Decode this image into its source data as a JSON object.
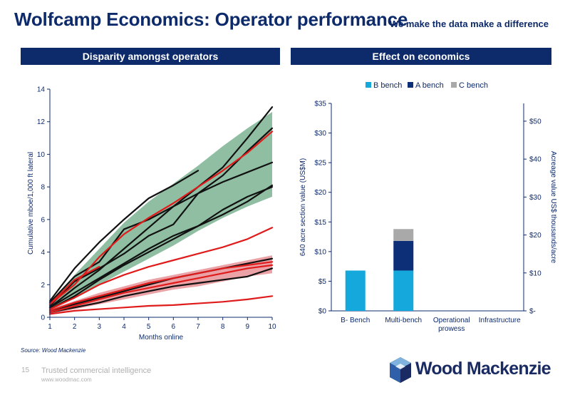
{
  "header": {
    "title": "Wolfcamp Economics: Operator performance",
    "tagline": "We make the data make a difference"
  },
  "panels": {
    "left_title": "Disparity amongst operators",
    "right_title": "Effect on economics"
  },
  "source": "Source: Wood Mackenzie",
  "footer": {
    "page_number": "15",
    "tagline": "Trusted commercial intelligence",
    "url": "www.woodmac.com",
    "logo_text": "WoodMackenzie"
  },
  "colors": {
    "navy": "#0d2a6b",
    "green_band": "#5fa27a",
    "red_band": "#e37a80",
    "black_line": "#111111",
    "red_line": "#e01b1b",
    "b_bench": "#14a8dd",
    "a_bench": "#0d2f78",
    "c_bench": "#a9a9a9"
  },
  "chart_data": [
    {
      "type": "line",
      "xlabel": "Months online",
      "ylabel": "Cumulative mboe/1,000 ft lateral",
      "xlim": [
        1,
        10
      ],
      "ylim": [
        0,
        14
      ],
      "x_ticks": [
        "1",
        "2",
        "3",
        "4",
        "5",
        "6",
        "7",
        "8",
        "9",
        "10"
      ],
      "y_ticks": [
        "0",
        "2",
        "4",
        "6",
        "8",
        "10",
        "12",
        "14"
      ],
      "grid": false,
      "bands": [
        {
          "color": "green",
          "x": [
            1,
            2,
            3,
            4,
            5,
            6,
            7,
            8,
            9,
            10
          ],
          "upper": [
            0.9,
            2.6,
            4.2,
            5.8,
            7.1,
            8.2,
            9.3,
            10.5,
            11.6,
            12.6
          ],
          "lower": [
            0.4,
            1.2,
            2.0,
            2.8,
            3.6,
            4.4,
            5.3,
            6.1,
            6.8,
            7.4
          ]
        },
        {
          "color": "red",
          "x": [
            1,
            2,
            3,
            4,
            5,
            6,
            7,
            8,
            9,
            10
          ],
          "upper": [
            0.5,
            1.0,
            1.5,
            1.9,
            2.3,
            2.6,
            2.9,
            3.2,
            3.5,
            3.8
          ],
          "lower": [
            0.2,
            0.5,
            0.8,
            1.1,
            1.4,
            1.7,
            1.9,
            2.2,
            2.5,
            2.7
          ]
        }
      ],
      "series": [
        {
          "color": "black",
          "x": [
            1,
            2,
            3,
            4,
            5,
            6,
            7
          ],
          "y": [
            1.0,
            3.0,
            4.6,
            6.0,
            7.3,
            8.1,
            9.0
          ]
        },
        {
          "color": "black",
          "x": [
            1,
            2,
            3,
            4,
            5,
            6,
            7,
            8,
            9,
            10
          ],
          "y": [
            0.6,
            1.8,
            2.9,
            4.2,
            5.5,
            6.8,
            8.0,
            9.2,
            11.0,
            12.9
          ]
        },
        {
          "color": "black",
          "x": [
            1,
            2,
            3,
            4,
            5,
            6,
            7,
            8,
            9,
            10
          ],
          "y": [
            0.9,
            2.5,
            3.4,
            5.4,
            6.0,
            6.8,
            7.6,
            8.7,
            10.2,
            11.6
          ]
        },
        {
          "color": "black",
          "x": [
            1,
            2,
            3,
            4,
            5,
            6,
            7,
            8,
            9,
            10
          ],
          "y": [
            0.7,
            2.2,
            3.0,
            3.9,
            5.0,
            5.7,
            7.6,
            8.3,
            8.9,
            9.5
          ]
        },
        {
          "color": "black",
          "x": [
            1,
            2,
            3,
            4,
            5,
            6,
            7,
            8,
            9,
            10
          ],
          "y": [
            0.5,
            1.3,
            2.3,
            3.2,
            4.0,
            4.8,
            5.6,
            6.3,
            7.1,
            8.1
          ]
        },
        {
          "color": "black",
          "x": [
            1,
            2,
            3,
            4,
            5,
            6,
            7,
            8,
            9,
            10
          ],
          "y": [
            0.6,
            1.5,
            2.4,
            3.3,
            4.2,
            5.0,
            5.6,
            6.6,
            7.4,
            8.0
          ]
        },
        {
          "color": "black",
          "x": [
            1,
            2,
            3,
            4,
            5,
            6,
            7,
            8,
            9,
            10
          ],
          "y": [
            0.4,
            0.8,
            1.2,
            1.6,
            2.0,
            2.4,
            2.7,
            3.0,
            3.3,
            3.6
          ]
        },
        {
          "color": "black",
          "x": [
            1,
            2,
            3,
            4,
            5,
            6,
            7,
            8,
            9,
            10
          ],
          "y": [
            0.3,
            0.6,
            0.9,
            1.3,
            1.6,
            1.9,
            2.1,
            2.3,
            2.5,
            3.0
          ]
        },
        {
          "color": "red",
          "x": [
            1,
            2,
            3,
            4,
            5,
            6,
            7,
            8,
            9,
            10
          ],
          "y": [
            0.8,
            2.0,
            3.7,
            5.1,
            6.1,
            7.0,
            8.0,
            9.0,
            10.1,
            11.4
          ]
        },
        {
          "color": "red",
          "x": [
            1,
            2,
            3
          ],
          "y": [
            0.8,
            2.3,
            3.1
          ]
        },
        {
          "color": "red",
          "x": [
            1,
            2,
            3,
            4,
            5,
            6,
            7,
            8,
            9,
            10
          ],
          "y": [
            0.5,
            1.2,
            2.0,
            2.6,
            3.1,
            3.5,
            3.9,
            4.3,
            4.8,
            5.5
          ]
        },
        {
          "color": "red",
          "x": [
            1,
            2,
            3,
            4,
            5,
            6,
            7,
            8,
            9,
            10
          ],
          "y": [
            0.4,
            0.9,
            1.3,
            1.7,
            2.1,
            2.4,
            2.7,
            3.0,
            3.2,
            3.4
          ]
        },
        {
          "color": "red",
          "x": [
            1,
            2,
            3,
            4,
            5,
            6,
            7,
            8,
            9,
            10
          ],
          "y": [
            0.3,
            0.7,
            1.1,
            1.5,
            1.8,
            2.1,
            2.4,
            2.7,
            3.0,
            3.2
          ]
        },
        {
          "color": "red",
          "x": [
            1,
            2,
            3,
            4,
            5,
            6,
            7,
            8,
            9,
            10
          ],
          "y": [
            0.2,
            0.4,
            0.5,
            0.6,
            0.7,
            0.75,
            0.85,
            0.95,
            1.1,
            1.3
          ]
        }
      ]
    },
    {
      "type": "bar",
      "stacked": true,
      "categories": [
        "B- Bench",
        "Multi-bench",
        "Operational prowess",
        "Infrastructure"
      ],
      "series": [
        {
          "name": "B bench",
          "values": [
            6.8,
            6.8,
            0,
            0
          ]
        },
        {
          "name": "A bench",
          "values": [
            0,
            5.0,
            0,
            0
          ]
        },
        {
          "name": "C bench",
          "values": [
            0,
            2.0,
            0,
            0
          ]
        }
      ],
      "ylabel": "640 acre section value (US$M)",
      "y2label": "Acreage value US$ thousands/acre",
      "ylim": [
        0,
        35
      ],
      "y_ticks": [
        "$0",
        "$5",
        "$10",
        "$15",
        "$20",
        "$25",
        "$30",
        "$35"
      ],
      "y2lim": [
        0,
        54.6875
      ],
      "y2_ticks": [
        "$-",
        "$10",
        "$20",
        "$30",
        "$40",
        "$50"
      ],
      "legend": "top"
    }
  ]
}
